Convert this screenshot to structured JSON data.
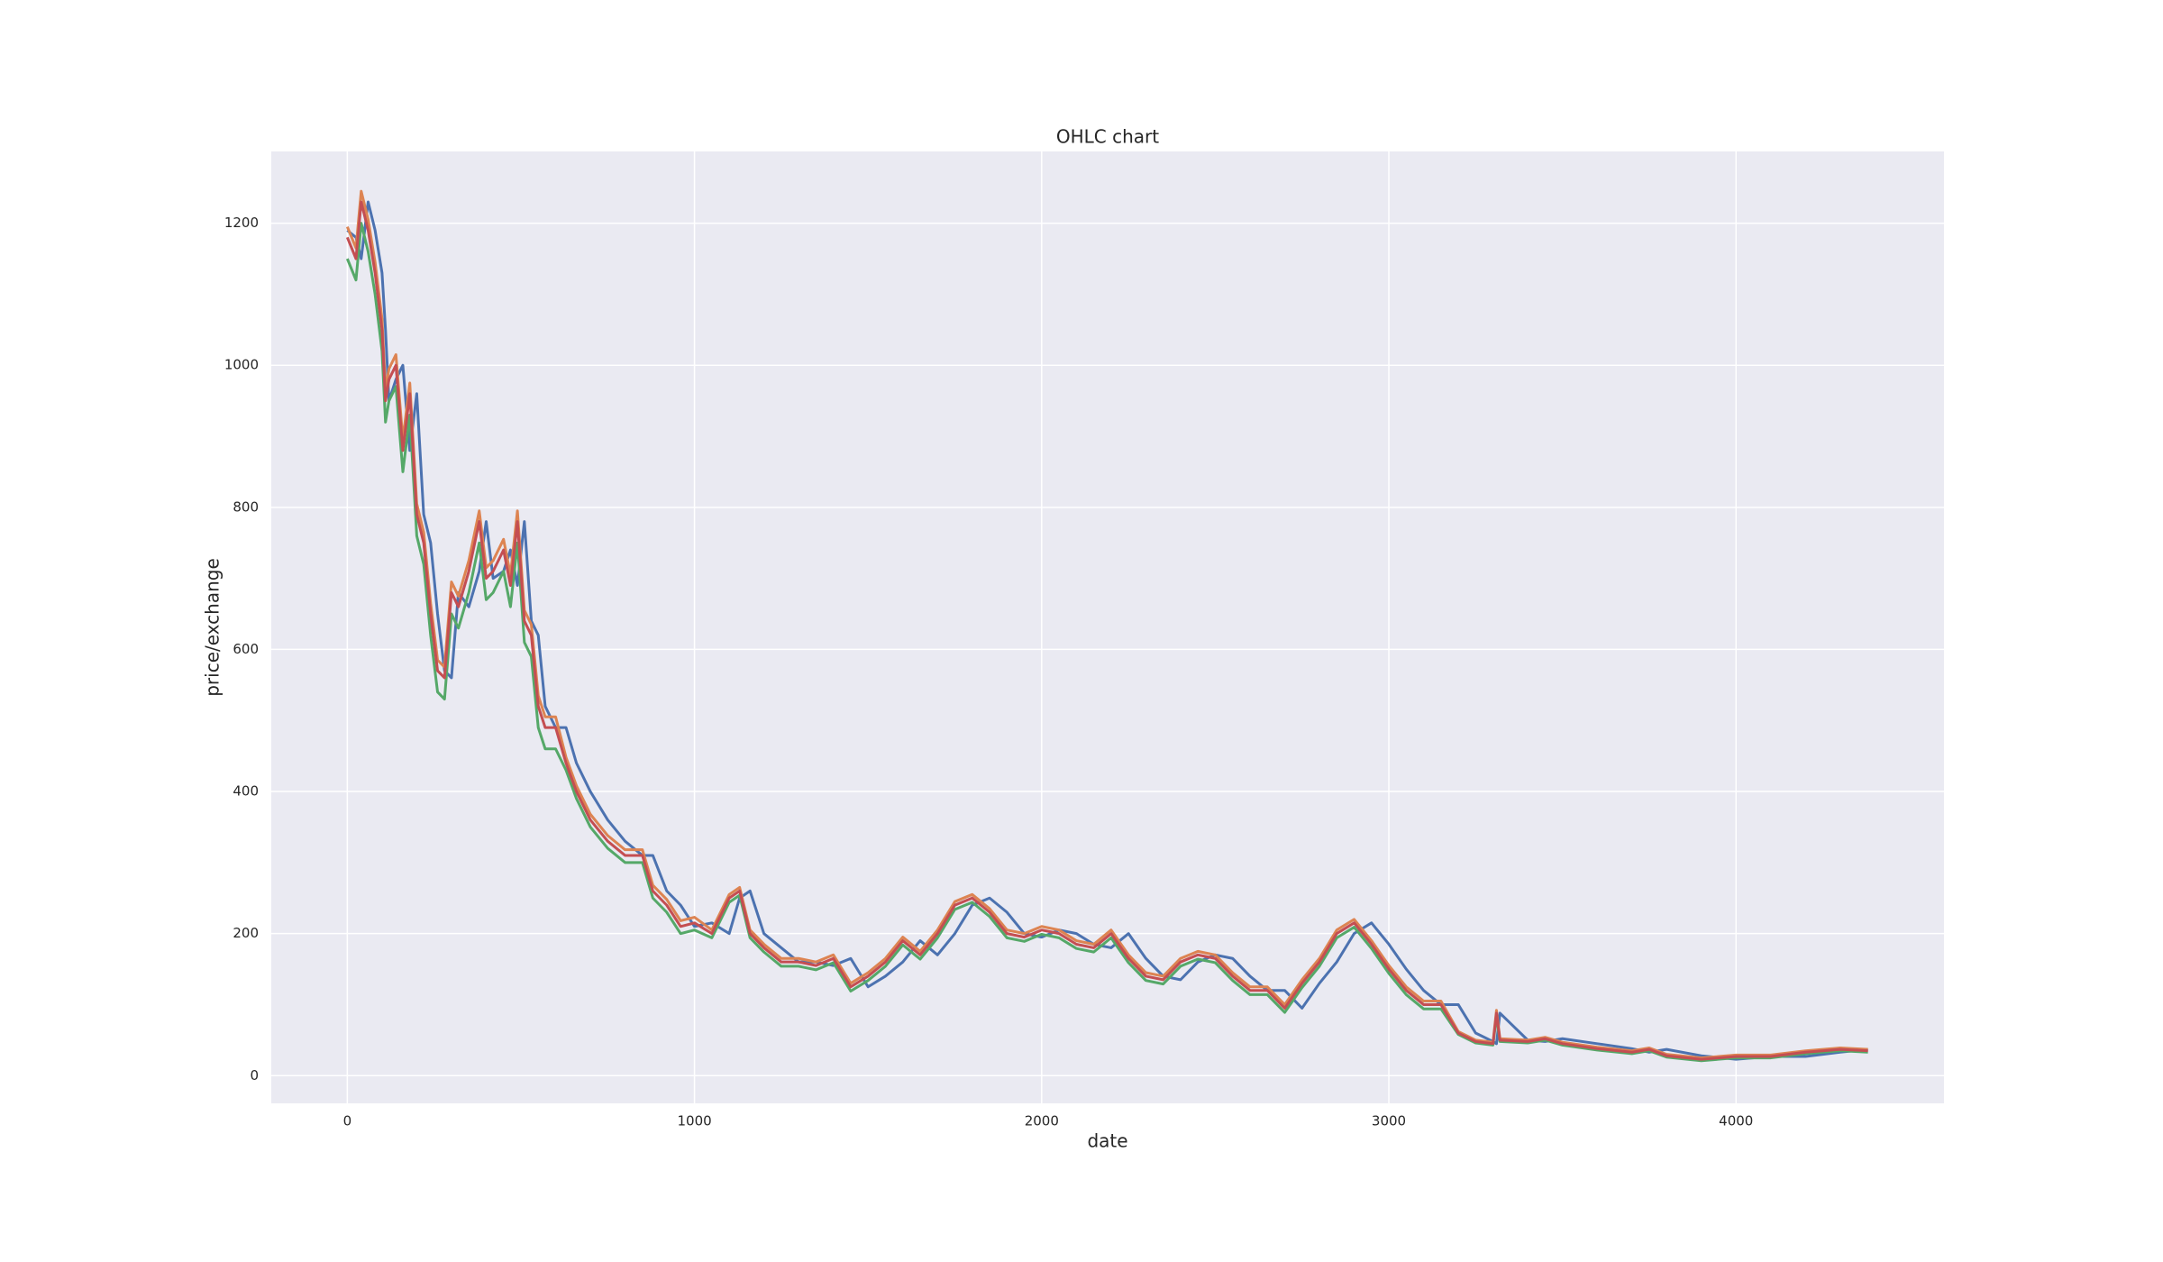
{
  "chart_data": {
    "type": "line",
    "title": "OHLC chart",
    "x_label": "date",
    "y_label": "price/exchange",
    "x": [
      0,
      25,
      40,
      60,
      80,
      100,
      110,
      120,
      140,
      160,
      180,
      200,
      220,
      240,
      260,
      280,
      300,
      320,
      350,
      380,
      400,
      420,
      450,
      470,
      490,
      510,
      530,
      550,
      570,
      600,
      630,
      660,
      700,
      750,
      800,
      850,
      880,
      920,
      960,
      1000,
      1050,
      1100,
      1130,
      1160,
      1200,
      1250,
      1300,
      1350,
      1400,
      1450,
      1500,
      1550,
      1600,
      1650,
      1700,
      1750,
      1800,
      1850,
      1900,
      1950,
      2000,
      2050,
      2100,
      2150,
      2200,
      2250,
      2300,
      2350,
      2400,
      2450,
      2500,
      2550,
      2600,
      2650,
      2700,
      2750,
      2800,
      2850,
      2900,
      2950,
      3000,
      3050,
      3100,
      3150,
      3200,
      3250,
      3300,
      3310,
      3320,
      3400,
      3450,
      3500,
      3600,
      3700,
      3750,
      3800,
      3900,
      4000,
      4100,
      4200,
      4300,
      4380
    ],
    "series": [
      {
        "color": "#4c72b0",
        "values": [
          1190,
          1180,
          1150,
          1230,
          1190,
          1130,
          1050,
          950,
          980,
          1000,
          880,
          960,
          790,
          750,
          650,
          570,
          560,
          680,
          660,
          710,
          780,
          700,
          710,
          740,
          690,
          780,
          640,
          620,
          520,
          490,
          490,
          440,
          400,
          360,
          330,
          310,
          310,
          260,
          240,
          210,
          215,
          200,
          250,
          260,
          200,
          180,
          160,
          160,
          155,
          165,
          125,
          140,
          160,
          190,
          170,
          200,
          240,
          250,
          230,
          200,
          195,
          205,
          200,
          185,
          180,
          200,
          165,
          140,
          135,
          160,
          170,
          165,
          140,
          120,
          120,
          95,
          130,
          160,
          200,
          215,
          185,
          150,
          120,
          100,
          100,
          60,
          48,
          45,
          88,
          50,
          48,
          52,
          45,
          38,
          33,
          37,
          28,
          23,
          27,
          27,
          33,
          37
        ]
      },
      {
        "color": "#dd8452",
        "values": [
          1195,
          1165,
          1245,
          1205,
          1145,
          1065,
          965,
          995,
          1015,
          895,
          975,
          805,
          765,
          665,
          585,
          575,
          695,
          675,
          725,
          795,
          715,
          725,
          755,
          705,
          795,
          655,
          635,
          535,
          505,
          505,
          448,
          408,
          368,
          338,
          318,
          318,
          268,
          248,
          218,
          223,
          205,
          255,
          265,
          205,
          185,
          165,
          165,
          160,
          170,
          130,
          145,
          165,
          195,
          175,
          205,
          245,
          255,
          235,
          205,
          200,
          210,
          205,
          190,
          185,
          205,
          170,
          145,
          140,
          165,
          175,
          170,
          145,
          125,
          125,
          100,
          135,
          165,
          205,
          220,
          190,
          155,
          125,
          105,
          105,
          62,
          50,
          47,
          92,
          52,
          50,
          54,
          47,
          40,
          35,
          39,
          30,
          25,
          29,
          29,
          35,
          39,
          37
        ]
      },
      {
        "color": "#55a868",
        "values": [
          1150,
          1120,
          1200,
          1160,
          1100,
          1020,
          920,
          950,
          970,
          850,
          930,
          760,
          720,
          620,
          540,
          530,
          650,
          630,
          680,
          750,
          670,
          680,
          710,
          660,
          750,
          610,
          590,
          490,
          460,
          460,
          430,
          390,
          350,
          320,
          300,
          300,
          250,
          230,
          200,
          205,
          194,
          244,
          254,
          194,
          174,
          154,
          154,
          149,
          159,
          119,
          134,
          154,
          184,
          164,
          194,
          234,
          244,
          224,
          194,
          189,
          199,
          194,
          179,
          174,
          194,
          159,
          134,
          129,
          154,
          164,
          159,
          134,
          114,
          114,
          89,
          124,
          154,
          194,
          209,
          179,
          144,
          114,
          94,
          94,
          58,
          46,
          43,
          84,
          48,
          46,
          50,
          43,
          36,
          31,
          35,
          26,
          21,
          25,
          25,
          31,
          35,
          33
        ]
      },
      {
        "color": "#c44e52",
        "values": [
          1180,
          1150,
          1230,
          1190,
          1130,
          1050,
          950,
          980,
          1000,
          880,
          960,
          790,
          750,
          650,
          570,
          560,
          680,
          660,
          710,
          780,
          700,
          710,
          740,
          690,
          780,
          640,
          620,
          520,
          490,
          490,
          440,
          400,
          360,
          330,
          310,
          310,
          260,
          240,
          210,
          215,
          200,
          250,
          260,
          200,
          180,
          160,
          160,
          155,
          165,
          125,
          140,
          160,
          190,
          170,
          200,
          240,
          250,
          230,
          200,
          195,
          205,
          200,
          185,
          180,
          200,
          165,
          140,
          135,
          160,
          170,
          165,
          140,
          120,
          120,
          95,
          130,
          160,
          200,
          215,
          185,
          150,
          120,
          100,
          100,
          60,
          48,
          45,
          88,
          50,
          48,
          52,
          45,
          38,
          33,
          37,
          28,
          23,
          27,
          27,
          33,
          37,
          35
        ]
      }
    ],
    "xlim": [
      -219,
      4599
    ],
    "ylim": [
      -39,
      1301
    ],
    "xticks": [
      0,
      1000,
      2000,
      3000,
      4000
    ],
    "yticks": [
      0,
      200,
      400,
      600,
      800,
      1000,
      1200
    ],
    "grid": true
  }
}
